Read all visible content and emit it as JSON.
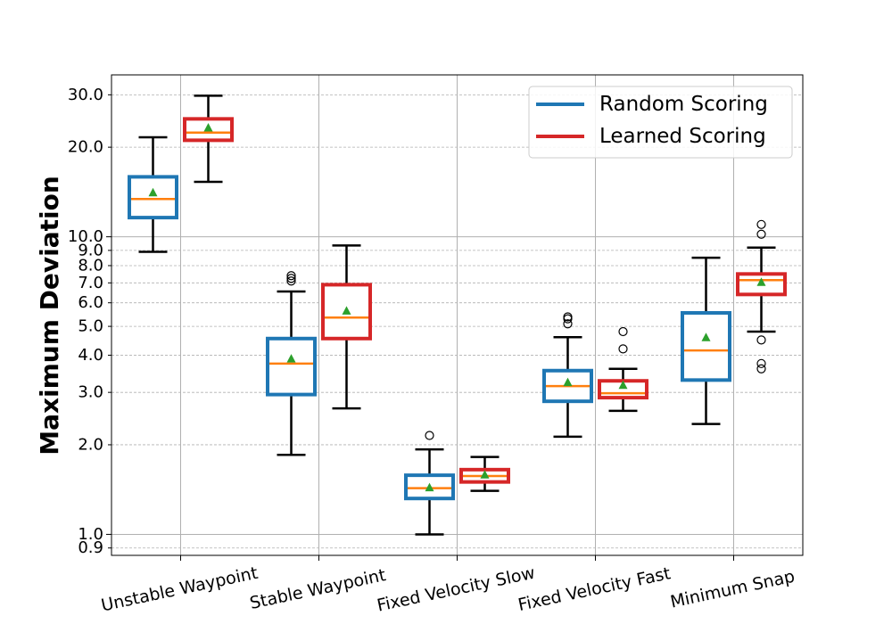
{
  "chart_data": {
    "type": "box",
    "title": "",
    "xlabel": "",
    "ylabel": "Maximum Deviation",
    "yscale": "log",
    "ylim": [
      0.85,
      35
    ],
    "grid": true,
    "legend_position": "top-right",
    "yticks": [
      {
        "value": 0.9,
        "label": "0.9"
      },
      {
        "value": 1.0,
        "label": "1.0"
      },
      {
        "value": 2.0,
        "label": "2.0"
      },
      {
        "value": 3.0,
        "label": "3.0"
      },
      {
        "value": 4.0,
        "label": "4.0"
      },
      {
        "value": 5.0,
        "label": "5.0"
      },
      {
        "value": 6.0,
        "label": "6.0"
      },
      {
        "value": 7.0,
        "label": "7.0"
      },
      {
        "value": 8.0,
        "label": "8.0"
      },
      {
        "value": 9.0,
        "label": "9.0"
      },
      {
        "value": 10.0,
        "label": "10.0"
      },
      {
        "value": 20.0,
        "label": "20.0"
      },
      {
        "value": 30.0,
        "label": "30.0"
      }
    ],
    "categories": [
      "Unstable Waypoint",
      "Stable Waypoint",
      "Fixed Velocity Slow",
      "Fixed Velocity Fast",
      "Minimum Snap"
    ],
    "series": [
      {
        "name": "Random Scoring",
        "color": "#1f77b4",
        "boxes": [
          {
            "whislo": 8.9,
            "q1": 11.6,
            "med": 13.4,
            "q3": 15.9,
            "whishi": 21.6,
            "mean": 14.1,
            "fliers": []
          },
          {
            "whislo": 1.85,
            "q1": 2.95,
            "med": 3.75,
            "q3": 4.55,
            "whishi": 6.55,
            "mean": 3.9,
            "fliers": [
              7.1,
              7.25,
              7.4
            ]
          },
          {
            "whislo": 1.0,
            "q1": 1.32,
            "med": 1.43,
            "q3": 1.58,
            "whishi": 1.93,
            "mean": 1.44,
            "fliers": [
              2.15
            ]
          },
          {
            "whislo": 2.13,
            "q1": 2.8,
            "med": 3.15,
            "q3": 3.55,
            "whishi": 4.6,
            "mean": 3.25,
            "fliers": [
              5.1,
              5.3,
              5.38
            ]
          },
          {
            "whislo": 2.35,
            "q1": 3.3,
            "med": 4.15,
            "q3": 5.55,
            "whishi": 8.5,
            "mean": 4.6,
            "fliers": []
          }
        ]
      },
      {
        "name": "Learned Scoring",
        "color": "#d62728",
        "boxes": [
          {
            "whislo": 15.3,
            "q1": 21.1,
            "med": 22.4,
            "q3": 24.9,
            "whishi": 29.8,
            "mean": 23.3,
            "fliers": []
          },
          {
            "whislo": 2.65,
            "q1": 4.55,
            "med": 5.35,
            "q3": 6.9,
            "whishi": 9.35,
            "mean": 5.65,
            "fliers": []
          },
          {
            "whislo": 1.4,
            "q1": 1.5,
            "med": 1.57,
            "q3": 1.65,
            "whishi": 1.82,
            "mean": 1.59,
            "fliers": []
          },
          {
            "whislo": 2.6,
            "q1": 2.88,
            "med": 2.98,
            "q3": 3.28,
            "whishi": 3.6,
            "mean": 3.18,
            "fliers": [
              4.2,
              4.8
            ]
          },
          {
            "whislo": 4.8,
            "q1": 6.4,
            "med": 7.15,
            "q3": 7.5,
            "whishi": 9.2,
            "mean": 7.05,
            "fliers": [
              3.6,
              3.75,
              4.5,
              10.2,
              11.0
            ]
          }
        ]
      }
    ],
    "median_color": "#ff7f0e",
    "mean_color": "#2ca02c"
  }
}
